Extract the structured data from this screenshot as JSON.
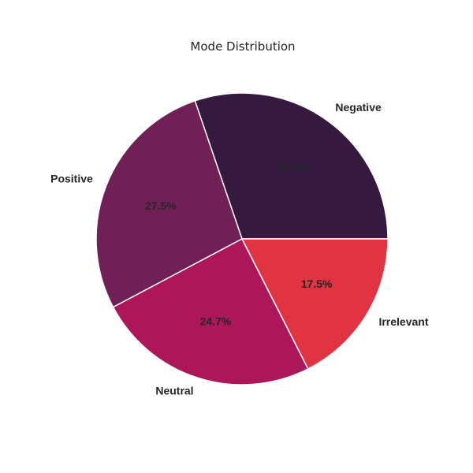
{
  "chart_data": {
    "type": "pie",
    "title": "Mode Distribution",
    "categories": [
      "Negative",
      "Positive",
      "Neutral",
      "Irrelevant"
    ],
    "values": [
      30.2,
      27.5,
      24.7,
      17.5
    ],
    "percent_labels": [
      "30.2%",
      "27.5%",
      "24.7%",
      "17.5%"
    ],
    "colors": [
      "#35193e",
      "#701f57",
      "#ad1759",
      "#e13342"
    ],
    "start_angle_deg": 0,
    "direction": "counterclockwise"
  }
}
